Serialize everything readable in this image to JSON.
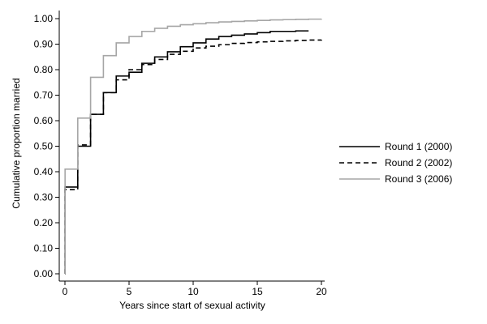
{
  "chart_data": {
    "type": "line",
    "step": true,
    "xlabel": "Years since start of sexual activity",
    "ylabel": "Cumulative proportion married",
    "xlim": [
      0,
      20
    ],
    "ylim": [
      0,
      1
    ],
    "x_ticks": [
      0,
      5,
      10,
      15,
      20
    ],
    "x_tick_labels": [
      "0",
      "5",
      "10",
      "15",
      "20"
    ],
    "y_ticks": [
      0,
      0.1,
      0.2,
      0.3,
      0.4,
      0.5,
      0.6,
      0.7,
      0.8,
      0.9,
      1.0
    ],
    "y_tick_labels": [
      "0.00",
      "0.10",
      "0.20",
      "0.30",
      "0.40",
      "0.50",
      "0.60",
      "0.70",
      "0.80",
      "0.90",
      "1.00"
    ],
    "grid": false,
    "legend_position": "right",
    "series": [
      {
        "name": "Round 1 (2000)",
        "color": "#000000",
        "style": "solid",
        "x": [
          0,
          0.01,
          1,
          2,
          3,
          4,
          5,
          6,
          7,
          8,
          9,
          10,
          11,
          12,
          13,
          14,
          15,
          16,
          17,
          18,
          19
        ],
        "y": [
          0,
          0.34,
          0.5,
          0.625,
          0.71,
          0.775,
          0.79,
          0.825,
          0.85,
          0.87,
          0.89,
          0.905,
          0.92,
          0.93,
          0.935,
          0.94,
          0.945,
          0.95,
          0.95,
          0.952,
          0.952
        ]
      },
      {
        "name": "Round 2 (2002)",
        "color": "#000000",
        "style": "dashed",
        "x": [
          0,
          0.01,
          1,
          2,
          3,
          4,
          5,
          6,
          7,
          8,
          9,
          10,
          11,
          12,
          13,
          14,
          15,
          16,
          17,
          18,
          19,
          20
        ],
        "y": [
          0,
          0.33,
          0.505,
          0.625,
          0.71,
          0.76,
          0.8,
          0.82,
          0.84,
          0.86,
          0.872,
          0.885,
          0.892,
          0.898,
          0.903,
          0.906,
          0.909,
          0.911,
          0.913,
          0.915,
          0.916,
          0.917
        ]
      },
      {
        "name": "Round 3 (2006)",
        "color": "#a6a6a6",
        "style": "solid",
        "x": [
          0,
          0.01,
          1,
          2,
          3,
          4,
          5,
          6,
          7,
          8,
          9,
          10,
          11,
          12,
          13,
          14,
          15,
          16,
          17,
          18,
          19,
          20
        ],
        "y": [
          0,
          0.41,
          0.61,
          0.77,
          0.855,
          0.905,
          0.93,
          0.95,
          0.962,
          0.97,
          0.976,
          0.98,
          0.984,
          0.987,
          0.989,
          0.991,
          0.993,
          0.995,
          0.996,
          0.997,
          0.998,
          0.999
        ]
      }
    ]
  }
}
